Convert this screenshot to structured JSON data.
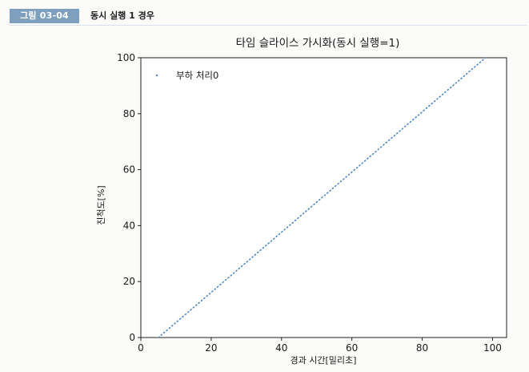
{
  "figure": {
    "badge": "그림 03-04",
    "caption": "동시 실행 1 경우"
  },
  "chart_data": {
    "type": "line",
    "title": "타임 슬라이스 가시화(동시 실행=1)",
    "xlabel": "경과 시간[밀리초]",
    "ylabel": "진척도[%]",
    "xlim": [
      0,
      104
    ],
    "ylim": [
      0,
      100
    ],
    "xticks": [
      0,
      20,
      40,
      60,
      80,
      100
    ],
    "yticks": [
      0,
      20,
      40,
      60,
      80,
      100
    ],
    "legend_position": "top-left",
    "grid": false,
    "marker_color": "#4f86c6",
    "series": [
      {
        "name": "부하 처리0",
        "style": "dotted",
        "x": [
          5,
          98
        ],
        "y": [
          0,
          100
        ]
      }
    ]
  }
}
